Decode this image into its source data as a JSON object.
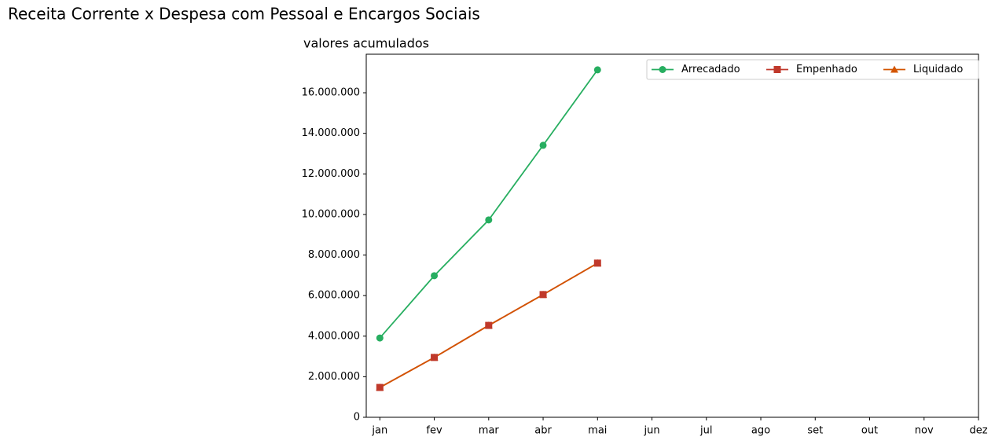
{
  "chart_data": {
    "type": "line",
    "title": "Receita Corrente x Despesa com Pessoal e Encargos Sociais",
    "subtitle": "valores acumulados",
    "categories": [
      "jan",
      "fev",
      "mar",
      "abr",
      "mai",
      "jun",
      "jul",
      "ago",
      "set",
      "out",
      "nov",
      "dez"
    ],
    "series": [
      {
        "name": "Arrecadado",
        "color": "#27ae60",
        "marker": "circle",
        "values": [
          3910000,
          6980000,
          9730000,
          13410000,
          17130000,
          null,
          null,
          null,
          null,
          null,
          null,
          null
        ]
      },
      {
        "name": "Empenhado",
        "color": "#c0392b",
        "marker": "square",
        "values": [
          1470000,
          2950000,
          4530000,
          6050000,
          7600000,
          null,
          null,
          null,
          null,
          null,
          null,
          null
        ]
      },
      {
        "name": "Liquidado",
        "color": "#d35400",
        "marker": "triangle",
        "values": [
          1470000,
          2950000,
          4530000,
          6050000,
          7600000,
          null,
          null,
          null,
          null,
          null,
          null,
          null
        ]
      }
    ],
    "ylim": [
      0,
      17900000
    ],
    "yticks": [
      0,
      {
        "value": 2000000,
        "label": "2.000.000"
      },
      {
        "value": 4000000,
        "label": "4.000.000"
      },
      {
        "value": 6000000,
        "label": "6.000.000"
      },
      {
        "value": 8000000,
        "label": "8.000.000"
      },
      {
        "value": 10000000,
        "label": "10.000.000"
      },
      {
        "value": 12000000,
        "label": "12.000.000"
      },
      {
        "value": 14000000,
        "label": "14.000.000"
      },
      {
        "value": 16000000,
        "label": "16.000.000"
      }
    ],
    "legend": "upper right"
  }
}
